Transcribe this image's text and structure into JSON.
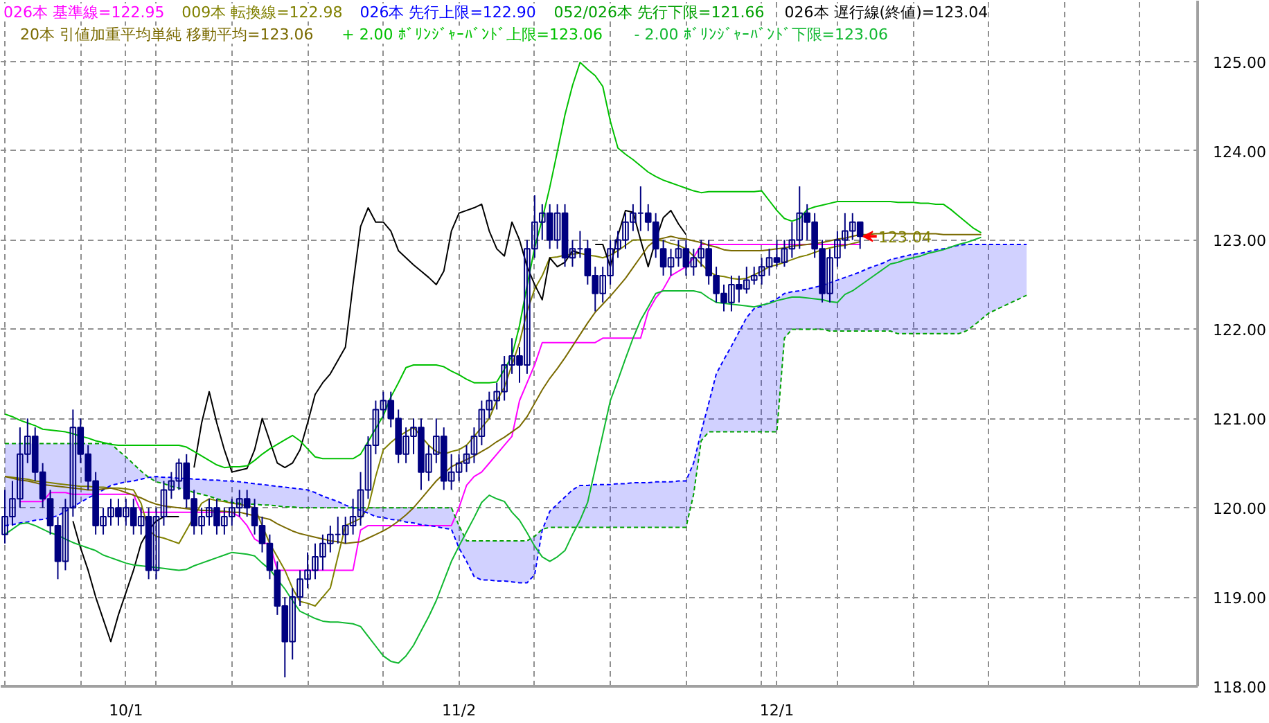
{
  "chart_data": {
    "type": "candlestick",
    "categories": [
      null,
      null,
      null,
      null,
      null,
      null,
      null,
      null,
      null,
      null,
      null,
      null,
      null,
      null,
      null,
      null,
      "10/1",
      null,
      null,
      null,
      null,
      null,
      null,
      null,
      null,
      null,
      null,
      null,
      null,
      null,
      null,
      null,
      null,
      null,
      null,
      null,
      null,
      null,
      null,
      null,
      null,
      null,
      null,
      null,
      null,
      null,
      null,
      null,
      null,
      null,
      null,
      null,
      null,
      null,
      null,
      null,
      null,
      null,
      null,
      null,
      "11/2",
      null,
      null,
      null,
      null,
      null,
      null,
      null,
      null,
      null,
      null,
      null,
      null,
      null,
      null,
      null,
      null,
      null,
      null,
      null,
      null,
      null,
      null,
      null,
      null,
      null,
      null,
      null,
      null,
      null,
      null,
      null,
      null,
      null,
      null,
      null,
      null,
      null,
      null,
      null,
      null,
      null,
      "12/1",
      null,
      null,
      null,
      null,
      null,
      null,
      null,
      null,
      null,
      null,
      null,
      null,
      null,
      null,
      null,
      null,
      null,
      null,
      null,
      null,
      null,
      null,
      null,
      null,
      null,
      null,
      null,
      null,
      null,
      null,
      null,
      null,
      null
    ],
    "ylim": [
      118,
      125.68
    ],
    "yticks": [
      {
        "value": 118,
        "label": "118.00"
      },
      {
        "value": 119,
        "label": "119.00"
      },
      {
        "value": 120,
        "label": "120.00"
      },
      {
        "value": 121,
        "label": "121.00"
      },
      {
        "value": 122,
        "label": "122.00"
      },
      {
        "value": 123,
        "label": "123.00"
      },
      {
        "value": 124,
        "label": "124.00"
      },
      {
        "value": 125,
        "label": "125.00"
      }
    ],
    "grid": true,
    "legend": "top",
    "color": "#000080",
    "ohlc": [
      [
        119.7,
        120.2,
        119.6,
        119.9
      ],
      [
        119.9,
        120.3,
        119.8,
        120.1
      ],
      [
        120.1,
        120.9,
        120.0,
        120.6
      ],
      [
        120.6,
        121.0,
        120.5,
        120.8
      ],
      [
        120.8,
        120.9,
        120.3,
        120.4
      ],
      [
        120.4,
        120.5,
        120.0,
        120.1
      ],
      [
        120.1,
        120.2,
        119.7,
        119.8
      ],
      [
        119.8,
        119.9,
        119.2,
        119.4
      ],
      [
        119.4,
        120.1,
        119.3,
        120.0
      ],
      [
        120.0,
        121.1,
        119.9,
        120.9
      ],
      [
        120.9,
        121.0,
        120.5,
        120.6
      ],
      [
        120.6,
        120.7,
        120.2,
        120.3
      ],
      [
        120.3,
        120.4,
        119.7,
        119.8
      ],
      [
        119.8,
        120.0,
        119.7,
        119.9
      ],
      [
        119.9,
        120.1,
        119.8,
        120.0
      ],
      [
        120.0,
        120.1,
        119.8,
        119.9
      ],
      [
        119.9,
        120.1,
        119.8,
        120.0
      ],
      [
        120.0,
        120.1,
        119.7,
        119.8
      ],
      [
        119.8,
        120.0,
        119.7,
        119.9
      ],
      [
        119.9,
        120.0,
        119.2,
        119.3
      ],
      [
        119.3,
        120.0,
        119.2,
        119.9
      ],
      [
        119.9,
        120.3,
        119.8,
        120.2
      ],
      [
        120.2,
        120.4,
        120.1,
        120.3
      ],
      [
        120.3,
        120.55,
        120.2,
        120.5
      ],
      [
        120.5,
        120.6,
        120.0,
        120.1
      ],
      [
        120.1,
        120.2,
        119.7,
        119.8
      ],
      [
        119.8,
        120.0,
        119.7,
        119.9
      ],
      [
        119.9,
        120.1,
        119.8,
        120.0
      ],
      [
        120.0,
        120.1,
        119.7,
        119.8
      ],
      [
        119.8,
        120.0,
        119.7,
        119.9
      ],
      [
        119.9,
        120.1,
        119.8,
        120.0
      ],
      [
        120.0,
        120.2,
        119.9,
        120.1
      ],
      [
        120.1,
        120.2,
        119.9,
        120.0
      ],
      [
        120.0,
        120.1,
        119.7,
        119.8
      ],
      [
        119.8,
        119.9,
        119.5,
        119.6
      ],
      [
        119.6,
        119.7,
        119.2,
        119.3
      ],
      [
        119.3,
        119.4,
        118.8,
        118.9
      ],
      [
        118.9,
        119.0,
        118.1,
        118.5
      ],
      [
        118.5,
        119.1,
        118.3,
        119.0
      ],
      [
        119.0,
        119.3,
        118.9,
        119.2
      ],
      [
        119.2,
        119.5,
        119.1,
        119.3
      ],
      [
        119.3,
        119.6,
        119.2,
        119.45
      ],
      [
        119.45,
        119.7,
        119.3,
        119.6
      ],
      [
        119.6,
        119.8,
        119.5,
        119.7
      ],
      [
        119.7,
        119.9,
        119.6,
        119.7
      ],
      [
        119.7,
        119.9,
        119.6,
        119.8
      ],
      [
        119.8,
        120.1,
        119.7,
        119.9
      ],
      [
        119.9,
        120.4,
        119.8,
        120.2
      ],
      [
        120.2,
        120.8,
        120.1,
        120.7
      ],
      [
        120.7,
        121.2,
        120.6,
        121.1
      ],
      [
        121.1,
        121.3,
        121.0,
        121.2
      ],
      [
        121.2,
        121.3,
        120.9,
        121.0
      ],
      [
        121.0,
        121.1,
        120.5,
        120.6
      ],
      [
        120.6,
        120.9,
        120.5,
        120.8
      ],
      [
        120.8,
        121.0,
        120.6,
        120.9
      ],
      [
        120.9,
        121.0,
        120.2,
        120.4
      ],
      [
        120.4,
        120.7,
        120.3,
        120.6
      ],
      [
        120.6,
        121.0,
        120.5,
        120.8
      ],
      [
        120.8,
        120.9,
        120.2,
        120.3
      ],
      [
        120.3,
        120.6,
        120.2,
        120.4
      ],
      [
        120.4,
        120.6,
        120.3,
        120.5
      ],
      [
        120.5,
        120.7,
        120.4,
        120.6
      ],
      [
        120.6,
        120.9,
        120.5,
        120.8
      ],
      [
        120.8,
        121.2,
        120.7,
        121.1
      ],
      [
        121.1,
        121.3,
        121.0,
        121.2
      ],
      [
        121.2,
        121.4,
        121.1,
        121.3
      ],
      [
        121.3,
        121.7,
        121.2,
        121.6
      ],
      [
        121.6,
        121.9,
        121.5,
        121.7
      ],
      [
        121.7,
        121.8,
        121.4,
        121.6
      ],
      [
        121.6,
        123.0,
        121.5,
        122.9
      ],
      [
        122.9,
        123.5,
        122.8,
        123.2
      ],
      [
        123.2,
        123.4,
        123.0,
        123.3
      ],
      [
        123.3,
        123.4,
        122.9,
        123.0
      ],
      [
        123.0,
        123.4,
        122.9,
        123.3
      ],
      [
        123.3,
        123.4,
        122.7,
        122.8
      ],
      [
        122.8,
        123.0,
        122.7,
        122.9
      ],
      [
        122.9,
        123.1,
        122.8,
        122.9
      ],
      [
        122.9,
        123.0,
        122.5,
        122.6
      ],
      [
        122.6,
        122.7,
        122.2,
        122.4
      ],
      [
        122.4,
        122.7,
        122.3,
        122.6
      ],
      [
        122.6,
        123.0,
        122.5,
        122.9
      ],
      [
        122.9,
        123.1,
        122.8,
        123.0
      ],
      [
        123.0,
        123.3,
        122.9,
        123.2
      ],
      [
        123.2,
        123.4,
        123.1,
        123.3
      ],
      [
        123.3,
        123.6,
        123.1,
        123.3
      ],
      [
        123.3,
        123.4,
        123.1,
        123.2
      ],
      [
        123.2,
        123.3,
        122.8,
        122.9
      ],
      [
        122.9,
        123.0,
        122.6,
        122.7
      ],
      [
        122.7,
        122.9,
        122.6,
        122.8
      ],
      [
        122.8,
        123.0,
        122.7,
        122.9
      ],
      [
        122.9,
        123.0,
        122.6,
        122.7
      ],
      [
        122.7,
        122.9,
        122.6,
        122.8
      ],
      [
        122.8,
        123.0,
        122.7,
        122.9
      ],
      [
        122.9,
        123.0,
        122.5,
        122.6
      ],
      [
        122.6,
        122.7,
        122.3,
        122.4
      ],
      [
        122.4,
        122.5,
        122.2,
        122.3
      ],
      [
        122.3,
        122.6,
        122.2,
        122.5
      ],
      [
        122.5,
        122.6,
        122.3,
        122.45
      ],
      [
        122.45,
        122.7,
        122.4,
        122.55
      ],
      [
        122.55,
        122.7,
        122.5,
        122.6
      ],
      [
        122.6,
        122.8,
        122.5,
        122.7
      ],
      [
        122.7,
        122.9,
        122.6,
        122.8
      ],
      [
        122.8,
        123.0,
        122.7,
        122.75
      ],
      [
        122.75,
        123.0,
        122.7,
        122.9
      ],
      [
        122.9,
        123.2,
        122.8,
        123.0
      ],
      [
        123.0,
        123.6,
        122.9,
        123.3
      ],
      [
        123.3,
        123.4,
        123.0,
        123.2
      ],
      [
        123.2,
        123.3,
        122.8,
        122.9
      ],
      [
        122.9,
        123.0,
        122.3,
        122.4
      ],
      [
        122.4,
        122.9,
        122.3,
        122.8
      ],
      [
        122.8,
        123.1,
        122.7,
        123.0
      ],
      [
        123.0,
        123.3,
        122.9,
        123.1
      ],
      [
        123.1,
        123.3,
        123.0,
        123.2
      ],
      [
        123.2,
        123.2,
        122.9,
        123.04
      ],
      null,
      null,
      null,
      null,
      null,
      null,
      null,
      null,
      null,
      null,
      null,
      null,
      null,
      null,
      null,
      null,
      null,
      null,
      null,
      null,
      null,
      null
    ],
    "series": [
      {
        "type": "line",
        "name": "026本 基準線=122.95",
        "color": "#ff00ff",
        "line_style": "solid",
        "values": [
          null,
          null,
          120.07,
          120.07,
          120.07,
          120.07,
          120.17,
          120.17,
          120.17,
          120.15,
          120.15,
          120.15,
          120.15,
          120.15,
          120.15,
          120.15,
          120.15,
          120.15,
          119.95,
          119.95,
          119.95,
          119.95,
          119.95,
          119.95,
          119.95,
          119.95,
          119.95,
          119.95,
          119.95,
          119.95,
          119.95,
          119.9,
          119.8,
          119.65,
          119.6,
          119.6,
          119.3,
          119.3,
          119.3,
          119.3,
          119.3,
          119.3,
          119.3,
          119.3,
          119.3,
          119.3,
          119.3,
          119.75,
          119.8,
          119.8,
          119.8,
          119.8,
          119.8,
          119.8,
          119.8,
          119.8,
          119.8,
          119.8,
          119.8,
          119.8,
          120.0,
          120.25,
          120.35,
          120.4,
          120.5,
          120.6,
          120.7,
          120.8,
          121.2,
          121.4,
          121.6,
          121.85,
          121.85,
          121.85,
          121.85,
          121.85,
          121.85,
          121.85,
          121.85,
          121.9,
          121.9,
          121.9,
          121.9,
          121.9,
          121.9,
          122.2,
          122.35,
          122.45,
          122.6,
          122.65,
          122.7,
          122.8,
          122.95,
          122.95,
          122.95,
          122.95,
          122.95,
          122.95,
          122.95,
          122.95,
          122.95,
          122.95,
          122.95,
          122.95,
          122.95,
          122.95,
          122.95,
          122.95,
          122.95,
          122.95,
          122.95,
          122.95,
          122.95,
          122.95,
          null,
          null,
          null,
          null,
          null,
          null,
          null,
          null,
          null,
          null,
          null,
          null,
          null,
          null,
          null,
          null,
          null,
          null,
          null,
          null,
          null,
          null
        ]
      },
      {
        "type": "line",
        "name": "009本 転換線=122.98",
        "color": "#808000",
        "line_style": "solid",
        "values": [
          120.35,
          120.34,
          120.33,
          120.32,
          120.3,
          120.29,
          120.28,
          120.27,
          120.26,
          120.25,
          120.24,
          120.24,
          120.23,
          120.23,
          120.22,
          120.22,
          120.21,
          120.2,
          120.05,
          119.75,
          119.68,
          119.66,
          119.63,
          119.6,
          119.75,
          119.9,
          120.05,
          120.1,
          120.08,
          120.07,
          120.05,
          120.04,
          120.02,
          120.0,
          119.8,
          119.6,
          119.45,
          119.3,
          119.1,
          118.95,
          118.93,
          118.9,
          119.0,
          119.1,
          119.45,
          119.8,
          119.84,
          119.88,
          120.0,
          120.35,
          120.65,
          120.73,
          120.8,
          120.85,
          120.9,
          120.8,
          120.7,
          120.63,
          120.6,
          120.63,
          120.65,
          120.7,
          120.8,
          120.9,
          121.0,
          121.2,
          121.35,
          121.6,
          121.85,
          122.2,
          122.45,
          122.6,
          122.8,
          122.81,
          122.83,
          122.84,
          122.85,
          122.83,
          122.82,
          122.8,
          122.83,
          122.88,
          122.94,
          123.0,
          123.0,
          123.0,
          123.0,
          122.99,
          122.96,
          122.94,
          122.9,
          122.82,
          122.73,
          122.65,
          122.6,
          122.59,
          122.57,
          122.56,
          122.57,
          122.61,
          122.65,
          122.7,
          122.72,
          122.75,
          122.78,
          122.81,
          122.83,
          122.86,
          122.89,
          122.91,
          122.93,
          122.94,
          122.96,
          122.98,
          null,
          null,
          null,
          null,
          null,
          null,
          null,
          null,
          null,
          null,
          null,
          null,
          null,
          null,
          null,
          null,
          null,
          null,
          null,
          null,
          null,
          null
        ]
      },
      {
        "type": "line",
        "name": "026本 先行上限=122.90",
        "color": "#0000ff",
        "line_style": "dashed",
        "values": [
          119.8,
          119.81,
          119.83,
          119.84,
          119.86,
          119.87,
          119.89,
          119.91,
          119.96,
          120.01,
          120.06,
          120.11,
          120.15,
          120.2,
          120.25,
          120.27,
          120.29,
          120.3,
          120.32,
          120.34,
          120.35,
          120.34,
          120.34,
          120.33,
          120.33,
          120.32,
          120.32,
          120.31,
          120.31,
          120.3,
          120.3,
          120.29,
          120.28,
          120.27,
          120.26,
          120.25,
          120.24,
          120.23,
          120.22,
          120.21,
          120.2,
          120.17,
          120.13,
          120.1,
          120.07,
          120.03,
          120.0,
          119.97,
          119.94,
          119.9,
          119.89,
          119.87,
          119.86,
          119.84,
          119.83,
          119.81,
          119.8,
          119.79,
          119.77,
          119.76,
          119.55,
          119.4,
          119.23,
          119.19,
          119.19,
          119.18,
          119.18,
          119.17,
          119.16,
          119.16,
          119.25,
          119.75,
          119.96,
          120.04,
          120.12,
          120.2,
          120.25,
          120.25,
          120.26,
          120.26,
          120.26,
          120.27,
          120.27,
          120.28,
          120.28,
          120.28,
          120.29,
          120.29,
          120.29,
          120.3,
          120.3,
          120.5,
          120.85,
          121.17,
          121.5,
          121.66,
          121.81,
          121.97,
          122.13,
          122.23,
          122.26,
          122.3,
          122.34,
          122.4,
          122.42,
          122.43,
          122.45,
          122.47,
          122.49,
          122.52,
          122.55,
          122.58,
          122.61,
          122.64,
          122.68,
          122.71,
          122.74,
          122.78,
          122.8,
          122.82,
          122.84,
          122.85,
          122.87,
          122.89,
          122.9,
          122.92,
          122.94,
          122.95,
          122.95,
          122.95,
          122.95,
          122.95,
          122.95,
          122.95,
          122.95,
          122.95
        ],
        "upper": [
          119.8,
          119.81,
          119.83,
          119.84,
          119.86,
          119.87,
          119.89,
          119.91,
          119.96,
          120.01,
          120.06,
          120.11,
          120.15,
          120.2,
          120.25,
          120.27,
          120.29,
          120.3,
          120.32,
          120.34,
          120.35,
          120.34,
          120.34,
          120.33,
          120.33,
          120.32,
          120.32,
          120.31,
          120.31,
          120.3,
          120.3,
          120.29,
          120.28,
          120.27,
          120.26,
          120.25,
          120.24,
          120.23,
          120.22,
          120.21,
          120.2,
          120.17,
          120.13,
          120.1,
          120.07,
          120.03,
          120.0,
          119.97,
          119.94,
          119.9,
          119.89,
          119.87,
          119.86,
          119.84,
          119.83,
          119.81,
          119.8,
          119.79,
          119.77,
          119.76,
          119.55,
          119.4,
          119.23,
          119.19,
          119.19,
          119.18,
          119.18,
          119.17,
          119.16,
          119.16,
          119.25,
          119.75,
          119.96,
          120.04,
          120.12,
          120.2,
          120.25,
          120.25,
          120.26,
          120.26,
          120.26,
          120.27,
          120.27,
          120.28,
          120.28,
          120.28,
          120.29,
          120.29,
          120.29,
          120.3,
          120.3,
          120.5,
          120.85,
          121.17,
          121.5,
          121.66,
          121.81,
          121.97,
          122.13,
          122.23,
          122.26,
          122.3,
          122.34,
          122.4,
          122.42,
          122.43,
          122.45,
          122.47,
          122.49,
          122.52,
          122.55,
          122.58,
          122.61,
          122.64,
          122.68,
          122.71,
          122.74,
          122.78,
          122.8,
          122.82,
          122.84,
          122.85,
          122.87,
          122.89,
          122.9,
          122.92,
          122.94,
          122.95,
          122.95,
          122.95,
          122.95,
          122.95,
          122.95,
          122.95,
          122.95,
          122.95
        ],
        "lower": [
          120.72,
          120.72,
          120.72,
          120.72,
          120.72,
          120.72,
          120.72,
          120.72,
          120.72,
          120.72,
          120.72,
          120.72,
          120.72,
          120.72,
          120.72,
          120.64,
          120.57,
          120.49,
          120.41,
          120.34,
          120.29,
          120.27,
          120.24,
          120.22,
          120.2,
          120.17,
          120.15,
          120.13,
          120.1,
          120.08,
          120.06,
          120.05,
          120.04,
          120.04,
          120.03,
          120.03,
          120.02,
          120.01,
          120.01,
          120.0,
          120.0,
          120.0,
          120.0,
          120.0,
          120.0,
          120.0,
          120.0,
          120.0,
          120.0,
          120.0,
          120.0,
          120.0,
          120.0,
          120.0,
          120.0,
          120.0,
          120.0,
          120.0,
          120.0,
          120.0,
          119.8,
          119.63,
          119.63,
          119.63,
          119.63,
          119.63,
          119.63,
          119.63,
          119.63,
          119.63,
          119.68,
          119.76,
          119.78,
          119.78,
          119.78,
          119.78,
          119.78,
          119.78,
          119.78,
          119.78,
          119.78,
          119.78,
          119.78,
          119.78,
          119.78,
          119.78,
          119.78,
          119.78,
          119.78,
          119.78,
          119.78,
          120.15,
          120.75,
          120.85,
          120.85,
          120.85,
          120.85,
          120.85,
          120.85,
          120.85,
          120.85,
          120.85,
          120.85,
          121.9,
          122.0,
          122.0,
          122.0,
          122.0,
          122.0,
          121.98,
          121.98,
          121.98,
          121.98,
          121.98,
          121.98,
          121.98,
          121.98,
          121.98,
          121.95,
          121.95,
          121.95,
          121.95,
          121.95,
          121.95,
          121.95,
          121.95,
          121.95,
          121.98,
          122.04,
          122.11,
          122.18,
          122.22,
          122.26,
          122.3,
          122.34,
          122.38
        ]
      },
      {
        "type": "line",
        "name": "052/026本 先行下限=121.66",
        "color": "#00a000",
        "line_style": "dashed",
        "values": [
          120.72,
          120.72,
          120.72,
          120.72,
          120.72,
          120.72,
          120.72,
          120.72,
          120.72,
          120.72,
          120.72,
          120.72,
          120.72,
          120.72,
          120.72,
          120.64,
          120.57,
          120.49,
          120.41,
          120.34,
          120.29,
          120.27,
          120.24,
          120.22,
          120.2,
          120.17,
          120.15,
          120.13,
          120.1,
          120.08,
          120.06,
          120.05,
          120.04,
          120.04,
          120.03,
          120.03,
          120.02,
          120.01,
          120.01,
          120.0,
          120.0,
          120.0,
          120.0,
          120.0,
          120.0,
          120.0,
          120.0,
          120.0,
          120.0,
          120.0,
          120.0,
          120.0,
          120.0,
          120.0,
          120.0,
          120.0,
          120.0,
          120.0,
          120.0,
          120.0,
          119.8,
          119.63,
          119.63,
          119.63,
          119.63,
          119.63,
          119.63,
          119.63,
          119.63,
          119.63,
          119.68,
          119.76,
          119.78,
          119.78,
          119.78,
          119.78,
          119.78,
          119.78,
          119.78,
          119.78,
          119.78,
          119.78,
          119.78,
          119.78,
          119.78,
          119.78,
          119.78,
          119.78,
          119.78,
          119.78,
          119.78,
          120.15,
          120.75,
          120.85,
          120.85,
          120.85,
          120.85,
          120.85,
          120.85,
          120.85,
          120.85,
          120.85,
          120.85,
          121.9,
          122.0,
          122.0,
          122.0,
          122.0,
          122.0,
          121.98,
          121.98,
          121.98,
          121.98,
          121.98,
          121.98,
          121.98,
          121.98,
          121.98,
          121.95,
          121.95,
          121.95,
          121.95,
          121.95,
          121.95,
          121.95,
          121.95,
          121.95,
          121.98,
          122.04,
          122.11,
          122.18,
          122.22,
          122.26,
          122.3,
          122.34,
          122.38
        ]
      },
      {
        "type": "line",
        "name": "026本 遅行線(終値)=123.04",
        "color": "#000000",
        "line_style": "solid",
        "values": [
          null,
          null,
          null,
          null,
          null,
          null,
          null,
          null,
          null,
          119.85,
          119.55,
          119.3,
          119.0,
          118.75,
          118.5,
          118.8,
          119.05,
          119.3,
          119.6,
          119.75,
          119.85,
          119.9,
          119.9,
          119.9,
          null,
          120.45,
          120.95,
          121.3,
          120.95,
          120.65,
          120.4,
          120.42,
          120.44,
          120.65,
          121.0,
          120.75,
          120.5,
          120.45,
          120.5,
          120.65,
          120.95,
          121.27,
          121.4,
          121.5,
          121.65,
          121.8,
          122.5,
          123.15,
          123.36,
          123.2,
          123.2,
          123.1,
          122.88,
          122.8,
          122.72,
          122.65,
          122.58,
          122.5,
          122.65,
          123.1,
          123.3,
          123.33,
          123.36,
          123.4,
          123.1,
          122.9,
          122.82,
          123.2,
          123.0,
          122.7,
          122.5,
          122.33,
          122.8,
          122.7,
          122.75,
          122.88,
          122.85,
          null,
          122.95,
          122.95,
          122.7,
          123.05,
          123.33,
          123.31,
          123.0,
          122.7,
          123.0,
          123.25,
          123.33,
          123.18,
          123.06,
          null,
          null,
          null,
          null,
          null,
          null,
          null,
          null,
          null,
          null,
          null,
          null,
          null,
          null,
          null,
          null,
          null,
          null,
          null,
          null,
          null,
          null,
          null,
          null,
          null,
          null,
          null,
          null,
          null,
          null,
          null,
          null,
          null,
          null,
          null,
          null,
          null,
          null,
          null,
          null,
          null,
          null,
          null,
          null,
          null
        ]
      },
      {
        "type": "line",
        "name": "20本 引値加重平均単純 移動平均=123.06",
        "color": "#7a6a00",
        "line_style": "solid",
        "values": [
          120.35,
          120.33,
          120.31,
          120.3,
          120.28,
          120.26,
          120.25,
          120.24,
          120.23,
          120.22,
          120.21,
          120.2,
          120.2,
          120.21,
          120.22,
          120.2,
          120.17,
          120.14,
          120.11,
          120.07,
          120.04,
          120.02,
          120.01,
          120.0,
          119.99,
          119.98,
          119.97,
          119.97,
          119.96,
          119.96,
          119.95,
          119.95,
          119.93,
          119.91,
          119.89,
          119.87,
          119.82,
          119.78,
          119.74,
          119.71,
          119.69,
          119.67,
          119.65,
          119.63,
          119.62,
          119.6,
          119.61,
          119.62,
          119.66,
          119.7,
          119.74,
          119.79,
          119.85,
          119.92,
          120.0,
          120.1,
          120.2,
          120.3,
          120.38,
          120.46,
          120.5,
          120.54,
          120.58,
          120.63,
          120.68,
          120.74,
          120.79,
          120.85,
          120.91,
          121.02,
          121.17,
          121.32,
          121.45,
          121.56,
          121.68,
          121.81,
          121.94,
          122.07,
          122.19,
          122.28,
          122.37,
          122.47,
          122.57,
          122.69,
          122.81,
          122.93,
          123.0,
          123.02,
          123.04,
          123.02,
          123.01,
          122.99,
          122.97,
          122.94,
          122.92,
          122.89,
          122.88,
          122.88,
          122.88,
          122.88,
          122.88,
          122.89,
          122.9,
          122.91,
          122.93,
          122.94,
          122.95,
          122.96,
          122.97,
          122.99,
          123.01,
          123.02,
          123.04,
          123.06,
          123.06,
          123.07,
          123.07,
          123.08,
          123.07,
          123.07,
          123.07,
          123.07,
          123.07,
          123.07,
          123.06,
          123.06,
          123.06,
          123.06,
          123.06,
          123.06,
          null,
          null,
          null,
          null,
          null,
          null
        ]
      },
      {
        "type": "line",
        "name": "+ 2.00 ﾎﾞﾘﾝｼﾞｬｰﾊﾞﾝﾄﾞ上限=123.06",
        "color": "#00c000",
        "line_style": "solid",
        "values": [
          121.05,
          121.02,
          120.98,
          120.95,
          120.92,
          120.88,
          120.87,
          120.86,
          120.85,
          120.83,
          120.8,
          120.78,
          120.75,
          120.73,
          120.71,
          120.7,
          120.7,
          120.7,
          120.7,
          120.7,
          120.7,
          120.7,
          120.7,
          120.7,
          120.68,
          120.63,
          120.58,
          120.53,
          120.48,
          120.45,
          120.46,
          120.46,
          120.47,
          120.53,
          120.6,
          120.66,
          120.71,
          120.76,
          120.81,
          120.75,
          120.66,
          120.57,
          120.55,
          120.55,
          120.55,
          120.55,
          120.55,
          120.6,
          120.74,
          120.89,
          121.03,
          121.24,
          121.4,
          121.57,
          121.6,
          121.6,
          121.6,
          121.6,
          121.58,
          121.53,
          121.49,
          121.44,
          121.4,
          121.4,
          121.4,
          121.41,
          121.55,
          121.7,
          122.04,
          122.49,
          122.91,
          123.23,
          123.59,
          123.99,
          124.4,
          124.73,
          124.99,
          124.91,
          124.84,
          124.72,
          124.33,
          124.03,
          123.96,
          123.9,
          123.83,
          123.76,
          123.71,
          123.67,
          123.64,
          123.61,
          123.58,
          123.55,
          123.53,
          123.54,
          123.54,
          123.54,
          123.54,
          123.54,
          123.54,
          123.54,
          123.55,
          123.44,
          123.33,
          123.24,
          123.21,
          123.24,
          123.34,
          123.37,
          123.39,
          123.41,
          123.43,
          123.43,
          123.43,
          123.43,
          123.43,
          123.43,
          123.43,
          123.43,
          123.42,
          123.42,
          123.42,
          123.41,
          123.41,
          123.4,
          123.4,
          123.34,
          123.27,
          123.2,
          123.13,
          123.08,
          null,
          null,
          null,
          null,
          null,
          null
        ]
      },
      {
        "type": "line",
        "name": "- 2.00 ﾎﾞﾘﾝｼﾞｬｰﾊﾞﾝﾄﾞ下限=123.06",
        "color": "#10b830",
        "line_style": "solid",
        "values": [
          119.7,
          119.76,
          119.82,
          119.83,
          119.8,
          119.76,
          119.72,
          119.69,
          119.65,
          119.61,
          119.58,
          119.55,
          119.52,
          119.47,
          119.44,
          119.41,
          119.38,
          119.36,
          119.35,
          119.34,
          119.33,
          119.32,
          119.31,
          119.3,
          119.31,
          119.35,
          119.38,
          119.41,
          119.44,
          119.47,
          119.5,
          119.49,
          119.48,
          119.46,
          119.38,
          119.31,
          119.2,
          119.09,
          118.96,
          118.84,
          118.8,
          118.76,
          118.73,
          118.72,
          118.72,
          118.71,
          118.7,
          118.67,
          118.56,
          118.45,
          118.34,
          118.28,
          118.26,
          118.34,
          118.46,
          118.62,
          118.78,
          118.96,
          119.18,
          119.4,
          119.57,
          119.73,
          119.89,
          120.06,
          120.14,
          120.1,
          120.07,
          119.95,
          119.86,
          119.72,
          119.57,
          119.45,
          119.4,
          119.45,
          119.52,
          119.7,
          119.86,
          120.06,
          120.44,
          120.82,
          121.2,
          121.43,
          121.67,
          121.9,
          122.1,
          122.25,
          122.4,
          122.43,
          122.43,
          122.43,
          122.43,
          122.43,
          122.41,
          122.35,
          122.3,
          122.29,
          122.28,
          122.27,
          122.26,
          122.25,
          122.27,
          122.29,
          122.32,
          122.34,
          122.36,
          122.36,
          122.35,
          122.34,
          122.33,
          122.31,
          122.3,
          122.39,
          122.43,
          122.49,
          122.55,
          122.61,
          122.67,
          122.73,
          122.75,
          122.78,
          122.8,
          122.82,
          122.85,
          122.87,
          122.89,
          122.92,
          122.95,
          122.97,
          123.0,
          123.03,
          null,
          null,
          null,
          null,
          null,
          null
        ]
      }
    ],
    "annotations": [
      {
        "text": "123.04",
        "y": 123.04
      }
    ]
  }
}
